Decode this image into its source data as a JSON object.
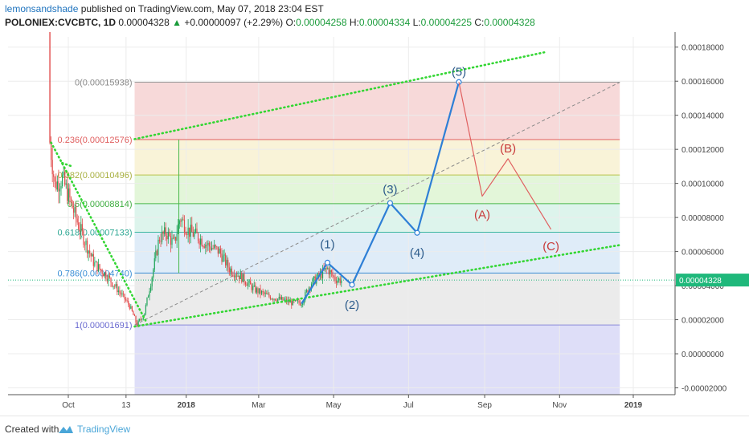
{
  "header": {
    "author": "lemonsandshade",
    "published": " published on TradingView.com, May 07, 2018 23:04 EST",
    "symbol": "POLONIEX:CVCBTC, 1D",
    "last": "0.00004328",
    "change_arrow": "▲",
    "change": "+0.00000097 (+2.29%)",
    "o_label": "O:",
    "o": "0.00004258",
    "h_label": "H:",
    "h": "0.00004334",
    "l_label": "L:",
    "l": "0.00004225",
    "c_label": "C:",
    "c": "0.00004328"
  },
  "footer": {
    "created_with": "Created with",
    "brand": "TradingView"
  },
  "colors": {
    "candle_up": "#1fa45a",
    "candle_down": "#e14b4b",
    "wave_blue": "#2e7fd6",
    "wave_red": "#e06060",
    "trend_green": "#33d633",
    "price_tag": "#1fb87b"
  },
  "chart_data": {
    "type": "candlestick",
    "x_ticks": [
      "Oct",
      "13",
      "2018",
      "Mar",
      "May",
      "Jul",
      "Sep",
      "Nov",
      "2019"
    ],
    "y_ticks": [
      "0.00018000",
      "0.00016000",
      "0.00014000",
      "0.00012000",
      "0.00010000",
      "0.00008000",
      "0.00006000",
      "0.00004000",
      "0.00002000",
      "0.00000000",
      "-0.00002000"
    ],
    "ylim": [
      -2.4e-05,
      0.000186
    ],
    "last_price": 4.328e-05,
    "last_price_label": "0.00004328",
    "fib_levels": [
      {
        "label": "0(0.00015938)",
        "value": 0.00015938
      },
      {
        "label": "0.236(0.00012576)",
        "value": 0.00012576
      },
      {
        "label": "0.382(0.00010496)",
        "value": 0.00010496
      },
      {
        "label": "0.5(0.00008814)",
        "value": 8.814e-05
      },
      {
        "label": "0.618(0.00007133)",
        "value": 7.133e-05
      },
      {
        "label": "0.786(0.00004740)",
        "value": 4.74e-05
      },
      {
        "label": "1(0.00001691)",
        "value": 1.691e-05
      }
    ],
    "fib_zone_colors": [
      "#f4cccc",
      "#f7efcb",
      "#daf3cc",
      "#d2f0e6",
      "#d4e6f6",
      "#e4e4e4",
      "#d3d3f5"
    ],
    "impulse_wave": {
      "labels": [
        "(1)",
        "(2)",
        "(3)",
        "(4)",
        "(5)"
      ],
      "points": [
        {
          "date": "2018-04-05",
          "value": 2.95e-05
        },
        {
          "date": "2018-04-26",
          "value": 5.35e-05
        },
        {
          "date": "2018-05-16",
          "value": 4.05e-05
        },
        {
          "date": "2018-06-16",
          "value": 8.85e-05
        },
        {
          "date": "2018-07-08",
          "value": 7.1e-05
        },
        {
          "date": "2018-08-11",
          "value": 0.0001595
        }
      ]
    },
    "corrective_wave": {
      "labels": [
        "(A)",
        "(B)",
        "(C)"
      ],
      "points": [
        {
          "date": "2018-08-11",
          "value": 0.0001595
        },
        {
          "date": "2018-08-30",
          "value": 9.25e-05
        },
        {
          "date": "2018-09-20",
          "value": 0.0001145
        },
        {
          "date": "2018-10-25",
          "value": 7.3e-05
        }
      ]
    },
    "price_path": [
      {
        "date": "2017-09-12",
        "value": 0.000124
      },
      {
        "date": "2017-09-16",
        "value": 9.9e-05
      },
      {
        "date": "2017-09-22",
        "value": 0.000103
      },
      {
        "date": "2017-09-28",
        "value": 9.1e-05
      },
      {
        "date": "2017-10-03",
        "value": 8e-05
      },
      {
        "date": "2017-10-10",
        "value": 6.7e-05
      },
      {
        "date": "2017-10-18",
        "value": 5.3e-05
      },
      {
        "date": "2017-10-28",
        "value": 4.6e-05
      },
      {
        "date": "2017-11-08",
        "value": 3.6e-05
      },
      {
        "date": "2017-11-16",
        "value": 2.8e-05
      },
      {
        "date": "2017-11-22",
        "value": 1.7e-05
      },
      {
        "date": "2017-11-28",
        "value": 2.4e-05
      },
      {
        "date": "2017-12-04",
        "value": 4.5e-05
      },
      {
        "date": "2017-12-10",
        "value": 6.8e-05
      },
      {
        "date": "2017-12-16",
        "value": 7.1e-05
      },
      {
        "date": "2017-12-22",
        "value": 6.4e-05
      },
      {
        "date": "2017-12-27",
        "value": 8e-05
      },
      {
        "date": "2018-01-03",
        "value": 7.2e-05
      },
      {
        "date": "2018-01-10",
        "value": 6.9e-05
      },
      {
        "date": "2018-01-18",
        "value": 6.4e-05
      },
      {
        "date": "2018-01-28",
        "value": 6e-05
      },
      {
        "date": "2018-02-05",
        "value": 5e-05
      },
      {
        "date": "2018-02-15",
        "value": 4.5e-05
      },
      {
        "date": "2018-02-25",
        "value": 3.8e-05
      },
      {
        "date": "2018-03-08",
        "value": 3.4e-05
      },
      {
        "date": "2018-03-18",
        "value": 3.2e-05
      },
      {
        "date": "2018-03-28",
        "value": 3e-05
      },
      {
        "date": "2018-04-05",
        "value": 3e-05
      },
      {
        "date": "2018-04-12",
        "value": 4.1e-05
      },
      {
        "date": "2018-04-20",
        "value": 4.6e-05
      },
      {
        "date": "2018-04-26",
        "value": 5e-05
      },
      {
        "date": "2018-05-02",
        "value": 4.4e-05
      },
      {
        "date": "2018-05-08",
        "value": 4.3e-05
      }
    ],
    "trendlines": [
      {
        "name": "upper-channel",
        "from": {
          "date": "2017-11-20",
          "value": 0.000126
        },
        "to": {
          "date": "2018-10-20",
          "value": 0.000177
        }
      },
      {
        "name": "lower-channel",
        "from": {
          "date": "2017-11-20",
          "value": 1.6e-05
        },
        "to": {
          "date": "2018-12-20",
          "value": 6.38e-05
        }
      },
      {
        "name": "down-trend",
        "from": {
          "date": "2017-09-13",
          "value": 0.000124
        },
        "to": {
          "date": "2017-11-30",
          "value": 1.8e-05
        }
      },
      {
        "name": "top-trend",
        "from": {
          "date": "2017-09-22",
          "value": 0.000112
        },
        "to": {
          "date": "2017-09-30",
          "value": 0.00011
        }
      }
    ],
    "fib_diagonal": {
      "from": {
        "date": "2017-11-20",
        "value": 1.691e-05
      },
      "to": {
        "date": "2018-12-20",
        "value": 0.00015938
      }
    }
  }
}
